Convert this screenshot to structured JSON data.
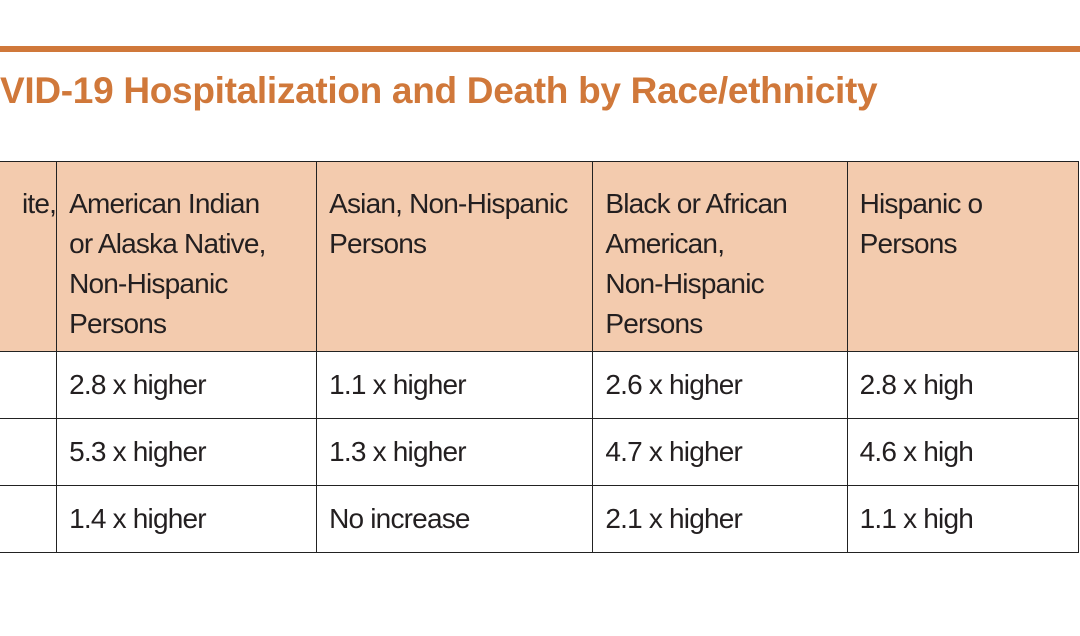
{
  "title": "VID-19 Hospitalization and Death by Race/ethnicity",
  "table": {
    "header": [
      [
        "ite,"
      ],
      [
        "American Indian",
        "or Alaska Native,",
        "Non-Hispanic",
        "Persons"
      ],
      [
        "Asian, Non-Hispanic",
        "Persons"
      ],
      [
        "Black or African",
        "American,",
        "Non-Hispanic",
        "Persons"
      ],
      [
        "Hispanic o",
        "Persons"
      ]
    ],
    "rows": [
      [
        "2.8 x higher",
        "1.1 x higher",
        "2.6 x higher",
        "2.8 x high"
      ],
      [
        "5.3 x higher",
        "1.3 x higher",
        "4.7 x higher",
        "4.6 x high"
      ],
      [
        "1.4 x higher",
        "No increase",
        "2.1 x higher",
        "1.1 x high"
      ]
    ]
  }
}
